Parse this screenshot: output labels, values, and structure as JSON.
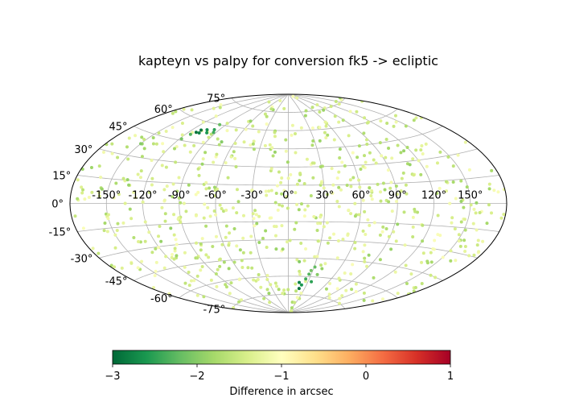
{
  "chart_data": {
    "type": "scatter",
    "projection": "aitoff",
    "title": "kapteyn vs palpy for conversion fk5 -> ecliptic",
    "xlabel": "",
    "ylabel": "",
    "grid": true,
    "x_ticks": [
      "-150°",
      "-120°",
      "-90°",
      "-60°",
      "-30°",
      "0°",
      "30°",
      "60°",
      "90°",
      "120°",
      "150°"
    ],
    "y_ticks": [
      "-75°",
      "-60°",
      "-45°",
      "-30°",
      "-15°",
      "0°",
      "15°",
      "30°",
      "45°",
      "60°",
      "75°"
    ],
    "colorbar": {
      "label": "Difference in arcsec",
      "colormap": "RdYlGn_r",
      "range": [
        -3,
        1
      ],
      "ticks": [
        "−3",
        "−2",
        "−1",
        "0",
        "1"
      ],
      "stops": [
        "#006837",
        "#1a9850",
        "#66bd63",
        "#a6d96a",
        "#d9ef8b",
        "#ffffbf",
        "#fee08b",
        "#fdae61",
        "#f46d43",
        "#d73027",
        "#a50026"
      ]
    },
    "series": [
      {
        "points": [
          {
            "lon": -112,
            "lat": 52,
            "value": -2.9
          },
          {
            "lon": -110,
            "lat": 54,
            "value": -2.9
          },
          {
            "lon": -108,
            "lat": 52,
            "value": -2.8
          },
          {
            "lon": -104,
            "lat": 55,
            "value": -2.7
          },
          {
            "lon": -100,
            "lat": 53,
            "value": -2.6
          },
          {
            "lon": -96,
            "lat": 56,
            "value": -2.5
          },
          {
            "lon": -93,
            "lat": 54,
            "value": -2.4
          },
          {
            "lon": -115,
            "lat": 50,
            "value": -2.3
          },
          {
            "lon": -98,
            "lat": 60,
            "value": -2.2
          },
          {
            "lon": 20,
            "lat": -70,
            "value": -2.9
          },
          {
            "lon": 17,
            "lat": -65,
            "value": -2.8
          },
          {
            "lon": 22,
            "lat": -67,
            "value": -2.6
          },
          {
            "lon": 25,
            "lat": -62,
            "value": -2.4
          },
          {
            "lon": 27,
            "lat": -58,
            "value": -2.3
          },
          {
            "lon": 31,
            "lat": -52,
            "value": -2.2
          },
          {
            "lon": 28,
            "lat": -55,
            "value": -2.1
          },
          {
            "lon": 35,
            "lat": -64,
            "value": -2.5
          },
          {
            "lon": 38,
            "lat": -58,
            "value": -2.0
          },
          {
            "lon": 40,
            "lat": -53,
            "value": -1.9
          },
          {
            "lon": 12,
            "lat": -48,
            "value": -2.0
          },
          {
            "lon": -118,
            "lat": 46,
            "value": -2.1
          },
          {
            "lon": -74,
            "lat": 48,
            "value": -2.0
          },
          {
            "lon": -62,
            "lat": 66,
            "value": -1.9
          },
          {
            "lon": -150,
            "lat": 38,
            "value": -2.0
          },
          {
            "lon": 95,
            "lat": -42,
            "value": -1.8
          }
        ],
        "background_count": 720,
        "background_value_range": [
          -1.9,
          -1.05
        ]
      }
    ]
  }
}
